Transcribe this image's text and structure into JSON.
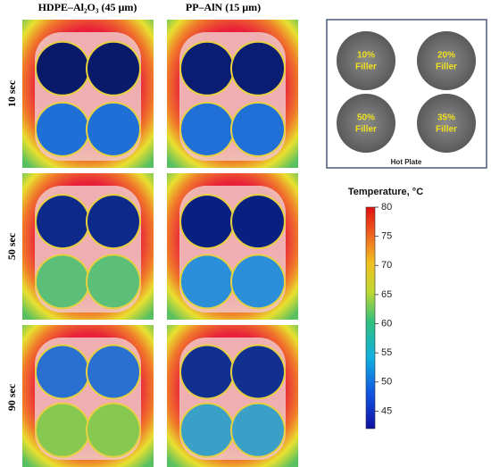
{
  "columns": [
    "HDPE–Al₂O₃ (45 µm)",
    "PP–AlN (15 µm)"
  ],
  "rows": [
    "10 sec",
    "50 sec",
    "90 sec"
  ],
  "inset": {
    "samples": [
      {
        "line1": "10%",
        "line2": "Filler"
      },
      {
        "line1": "20%",
        "line2": "Filler"
      },
      {
        "line1": "50%",
        "line2": "Filler"
      },
      {
        "line1": "35%",
        "line2": "Filler"
      }
    ],
    "caption": "Hot Plate"
  },
  "colorbar": {
    "title": "Temperature, °C",
    "lim": [
      42,
      80
    ],
    "ticks": [
      45,
      50,
      55,
      60,
      65,
      70,
      75,
      80
    ]
  }
}
